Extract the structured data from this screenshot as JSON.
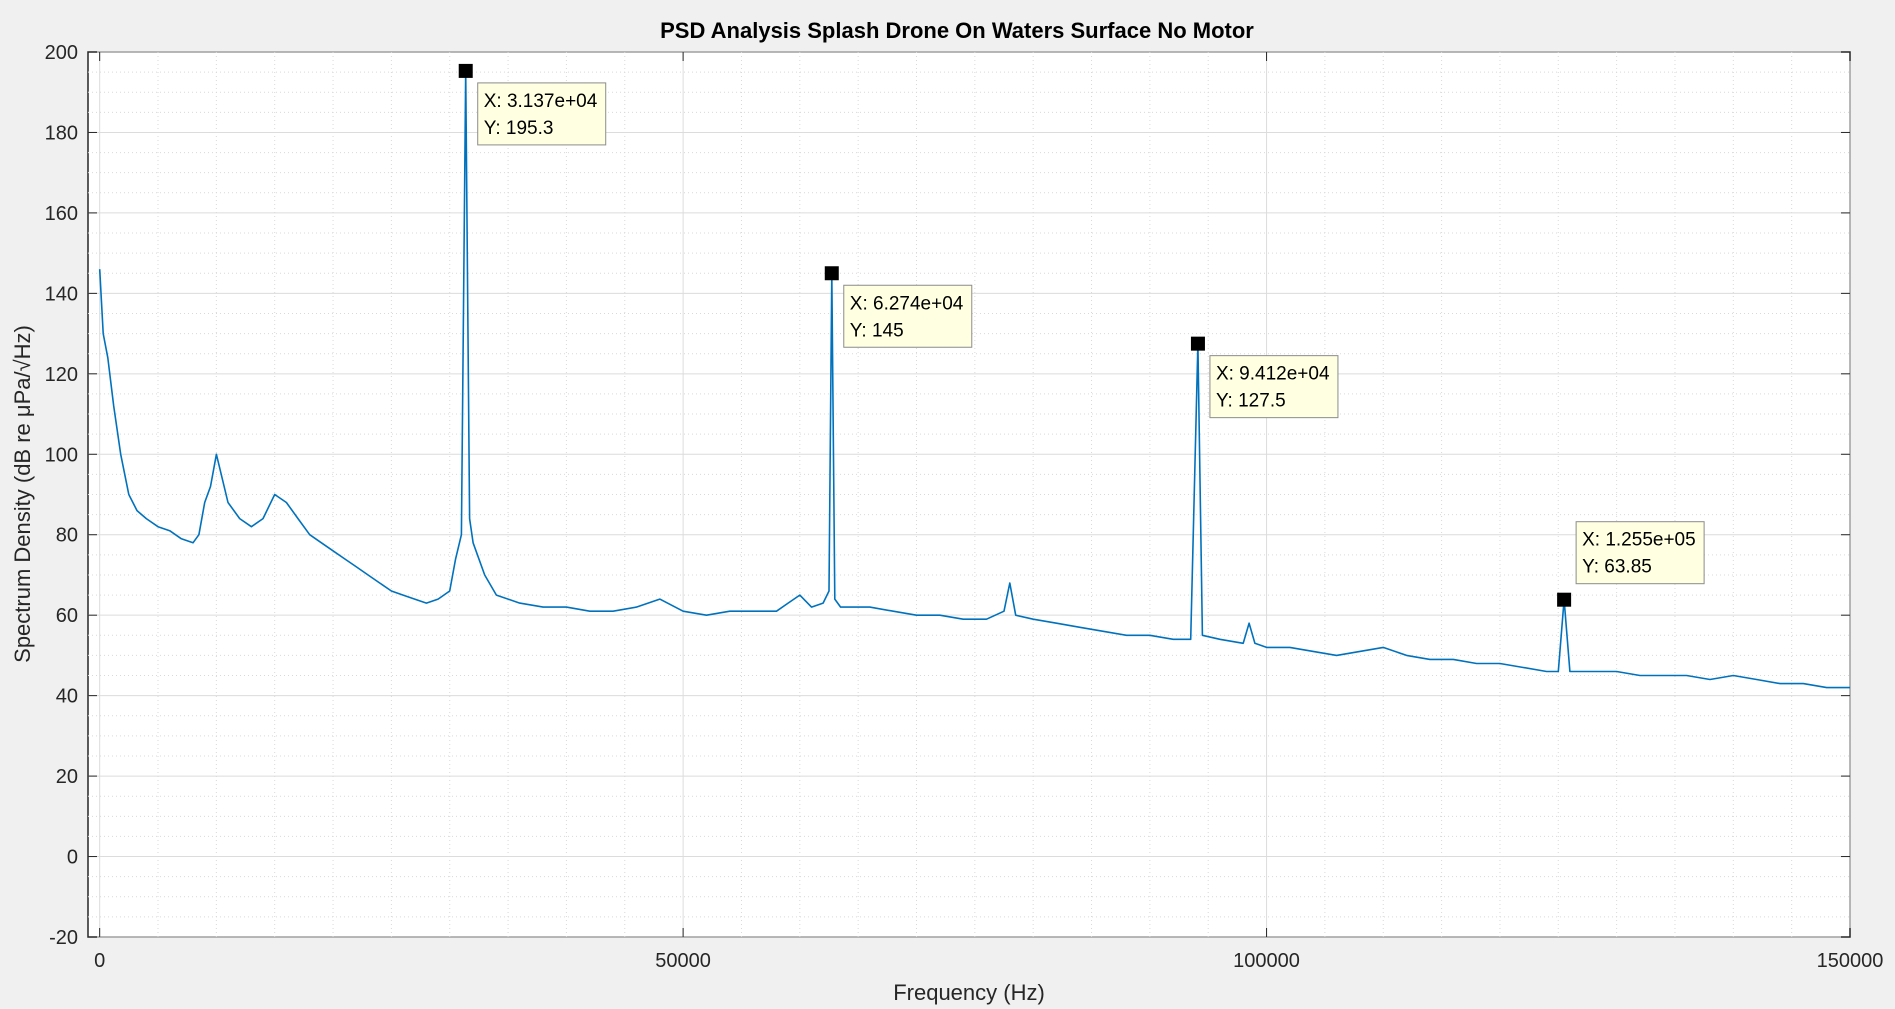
{
  "chart_data": {
    "type": "line",
    "title": "PSD Analysis Splash Drone On Waters Surface No Motor",
    "xlabel": "Frequency (Hz)",
    "ylabel": "Spectrum Density (dB re μPa/√Hz)",
    "xlim": [
      -1000,
      150000
    ],
    "ylim": [
      -20,
      200
    ],
    "xticks": [
      0,
      50000,
      100000,
      150000
    ],
    "xtick_labels": [
      "0",
      "50000",
      "100000",
      "150000"
    ],
    "yticks": [
      -20,
      0,
      20,
      40,
      60,
      80,
      100,
      120,
      140,
      160,
      180,
      200
    ],
    "ytick_labels": [
      "-20",
      "0",
      "20",
      "40",
      "60",
      "80",
      "100",
      "120",
      "140",
      "160",
      "180",
      "200"
    ],
    "grid": true,
    "minor_grid": true,
    "line_color": "#0072bd",
    "series": [
      {
        "x": [
          0,
          300,
          700,
          1200,
          1800,
          2500,
          3200,
          4000,
          5000,
          6000,
          7000,
          8000,
          8500,
          9000,
          9500,
          10000,
          11000,
          12000,
          13000,
          14000,
          15000,
          16000,
          17000,
          18000,
          19000,
          20000,
          21000,
          22000,
          23000,
          24000,
          25000,
          26000,
          27000,
          28000,
          29000,
          30000,
          30500,
          31000,
          31370,
          31700,
          32000,
          33000,
          34000,
          36000,
          38000,
          40000,
          42000,
          44000,
          46000,
          48000,
          50000,
          52000,
          54000,
          56000,
          58000,
          59000,
          60000,
          61000,
          62000,
          62500,
          62740,
          63000,
          63500,
          64000,
          66000,
          68000,
          70000,
          72000,
          74000,
          76000,
          77500,
          78000,
          78500,
          80000,
          82000,
          84000,
          86000,
          88000,
          90000,
          92000,
          93500,
          94120,
          94500,
          96000,
          98000,
          98500,
          99000,
          100000,
          102000,
          104000,
          106000,
          108000,
          110000,
          112000,
          114000,
          116000,
          118000,
          120000,
          122000,
          124000,
          125000,
          125500,
          126000,
          128000,
          130000,
          132000,
          134000,
          136000,
          138000,
          140000,
          142000,
          144000,
          146000,
          148000,
          150000
        ],
        "y": [
          146,
          130,
          124,
          112,
          100,
          90,
          86,
          84,
          82,
          81,
          79,
          78,
          80,
          88,
          92,
          100,
          88,
          84,
          82,
          84,
          90,
          88,
          84,
          80,
          78,
          76,
          74,
          72,
          70,
          68,
          66,
          65,
          64,
          63,
          64,
          66,
          74,
          80,
          195.3,
          84,
          78,
          70,
          65,
          63,
          62,
          62,
          61,
          61,
          62,
          64,
          61,
          60,
          61,
          61,
          61,
          63,
          65,
          62,
          63,
          66,
          145,
          64,
          62,
          62,
          62,
          61,
          60,
          60,
          59,
          59,
          61,
          68,
          60,
          59,
          58,
          57,
          56,
          55,
          55,
          54,
          54,
          127.5,
          55,
          54,
          53,
          58,
          53,
          52,
          52,
          51,
          50,
          51,
          52,
          50,
          49,
          49,
          48,
          48,
          47,
          46,
          46,
          63.85,
          46,
          46,
          46,
          45,
          45,
          45,
          44,
          45,
          44,
          43,
          43,
          42,
          42
        ]
      }
    ],
    "datatips": [
      {
        "x": 31370,
        "y": 195.3,
        "label_x": "X: 3.137e+04",
        "label_y": "Y: 195.3"
      },
      {
        "x": 62740,
        "y": 145,
        "label_x": "X: 6.274e+04",
        "label_y": "Y: 145"
      },
      {
        "x": 94120,
        "y": 127.5,
        "label_x": "X: 9.412e+04",
        "label_y": "Y: 127.5"
      },
      {
        "x": 125500,
        "y": 63.85,
        "label_x": "X: 1.255e+05",
        "label_y": "Y: 63.85"
      }
    ]
  }
}
